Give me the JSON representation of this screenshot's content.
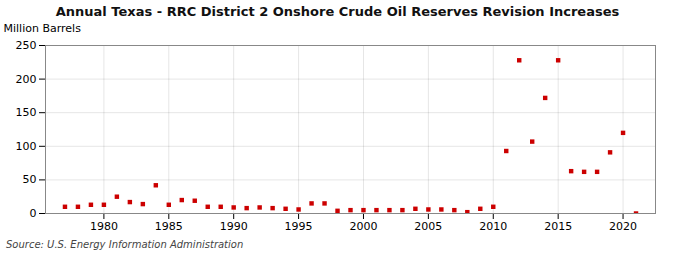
{
  "chart_data": {
    "type": "scatter",
    "title": "Annual Texas - RRC District 2 Onshore Crude Oil Reserves Revision Increases",
    "ylabel": "Million Barrels",
    "source": "Source: U.S. Energy Information Administration",
    "x": [
      1977,
      1978,
      1979,
      1980,
      1981,
      1982,
      1983,
      1984,
      1985,
      1986,
      1987,
      1988,
      1989,
      1990,
      1991,
      1992,
      1993,
      1994,
      1995,
      1996,
      1997,
      1998,
      1999,
      2000,
      2001,
      2002,
      2003,
      2004,
      2005,
      2006,
      2007,
      2008,
      2009,
      2010,
      2011,
      2012,
      2013,
      2014,
      2015,
      2016,
      2017,
      2018,
      2019,
      2020,
      2021
    ],
    "values": [
      10,
      10,
      13,
      13,
      25,
      17,
      14,
      42,
      13,
      20,
      19,
      10,
      10,
      9,
      8,
      9,
      8,
      7,
      6,
      15,
      15,
      4,
      5,
      5,
      5,
      5,
      5,
      7,
      6,
      6,
      5,
      2,
      7,
      10,
      93,
      228,
      107,
      172,
      228,
      63,
      62,
      62,
      91,
      120,
      0
    ],
    "color": "#cc0000",
    "marker": "square",
    "xlim": [
      1975.5,
      2022.5
    ],
    "ylim": [
      0,
      250
    ],
    "xticks": [
      1980,
      1985,
      1990,
      1995,
      2000,
      2005,
      2010,
      2015,
      2020
    ],
    "yticks": [
      0,
      50,
      100,
      150,
      200,
      250
    ],
    "grid": true
  }
}
